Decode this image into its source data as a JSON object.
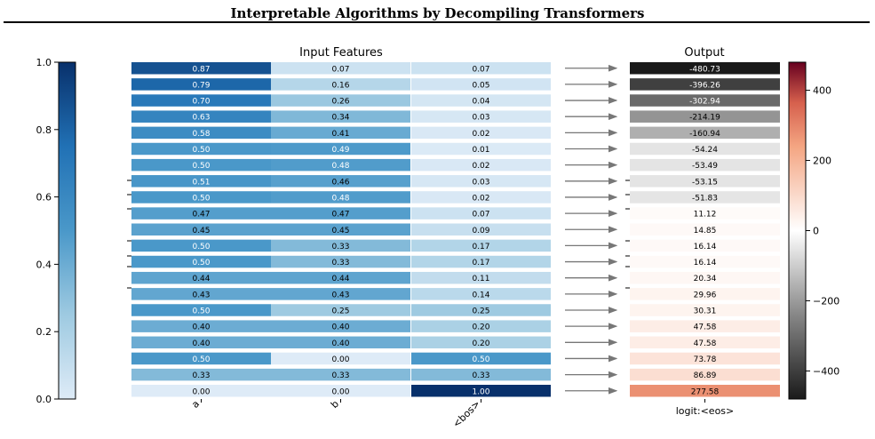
{
  "title": "Interpretable Algorithms by Decompiling Transformers",
  "chart_data": {
    "type": "heatmap",
    "input_panel": {
      "title": "Input Features",
      "columns": [
        "a",
        "b",
        "<bos>"
      ],
      "values": [
        [
          0.87,
          0.07,
          0.07
        ],
        [
          0.79,
          0.16,
          0.05
        ],
        [
          0.7,
          0.26,
          0.04
        ],
        [
          0.63,
          0.34,
          0.03
        ],
        [
          0.58,
          0.41,
          0.02
        ],
        [
          0.5,
          0.49,
          0.01
        ],
        [
          0.5,
          0.48,
          0.02
        ],
        [
          0.51,
          0.46,
          0.03
        ],
        [
          0.5,
          0.48,
          0.02
        ],
        [
          0.47,
          0.47,
          0.07
        ],
        [
          0.45,
          0.45,
          0.09
        ],
        [
          0.5,
          0.33,
          0.17
        ],
        [
          0.5,
          0.33,
          0.17
        ],
        [
          0.44,
          0.44,
          0.11
        ],
        [
          0.43,
          0.43,
          0.14
        ],
        [
          0.5,
          0.25,
          0.25
        ],
        [
          0.4,
          0.4,
          0.2
        ],
        [
          0.4,
          0.4,
          0.2
        ],
        [
          0.5,
          0.0,
          0.5
        ],
        [
          0.33,
          0.33,
          0.33
        ],
        [
          0.0,
          0.0,
          1.0
        ]
      ],
      "labels": [
        [
          "0.87",
          "0.07",
          "0.07"
        ],
        [
          "0.79",
          "0.16",
          "0.05"
        ],
        [
          "0.70",
          "0.26",
          "0.04"
        ],
        [
          "0.63",
          "0.34",
          "0.03"
        ],
        [
          "0.58",
          "0.41",
          "0.02"
        ],
        [
          "0.50",
          "0.49",
          "0.01"
        ],
        [
          "0.50",
          "0.48",
          "0.02"
        ],
        [
          "0.51",
          "0.46",
          "0.03"
        ],
        [
          "0.50",
          "0.48",
          "0.02"
        ],
        [
          "0.47",
          "0.47",
          "0.07"
        ],
        [
          "0.45",
          "0.45",
          "0.09"
        ],
        [
          "0.50",
          "0.33",
          "0.17"
        ],
        [
          "0.50",
          "0.33",
          "0.17"
        ],
        [
          "0.44",
          "0.44",
          "0.11"
        ],
        [
          "0.43",
          "0.43",
          "0.14"
        ],
        [
          "0.50",
          "0.25",
          "0.25"
        ],
        [
          "0.40",
          "0.40",
          "0.20"
        ],
        [
          "0.40",
          "0.40",
          "0.20"
        ],
        [
          "0.50",
          "0.00",
          "0.50"
        ],
        [
          "0.33",
          "0.33",
          "0.33"
        ],
        [
          "0.00",
          "0.00",
          "1.00"
        ]
      ],
      "colormap": "Blues",
      "colorbar_range": [
        0.0,
        1.0
      ],
      "colorbar_ticks": [
        "0.0",
        "0.2",
        "0.4",
        "0.6",
        "0.8",
        "1.0"
      ]
    },
    "output_panel": {
      "title": "Output",
      "column": "logit:<eos>",
      "values": [
        -480.73,
        -396.26,
        -302.94,
        -214.19,
        -160.94,
        -54.24,
        -53.49,
        -53.15,
        -51.83,
        11.12,
        14.85,
        16.14,
        16.14,
        20.34,
        29.96,
        30.31,
        47.58,
        47.58,
        73.78,
        86.89,
        277.58
      ],
      "labels": [
        "-480.73",
        "-396.26",
        "-302.94",
        "-214.19",
        "-160.94",
        "-54.24",
        "-53.49",
        "-53.15",
        "-51.83",
        "11.12",
        "14.85",
        "16.14",
        "16.14",
        "20.34",
        "29.96",
        "30.31",
        "47.58",
        "47.58",
        "73.78",
        "86.89",
        "277.58"
      ],
      "colormap": "RdGy_r",
      "colorbar_range": [
        -480,
        480
      ],
      "colorbar_ticks": [
        "400",
        "200",
        "0",
        "−200",
        "−400"
      ]
    }
  }
}
